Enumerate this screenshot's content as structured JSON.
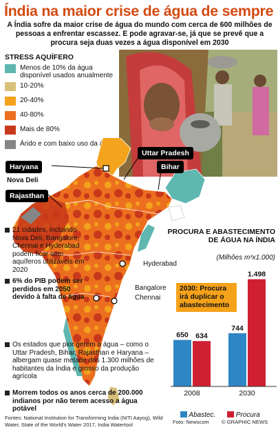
{
  "title": "Índia na maior crise de água de sempre",
  "subtitle": "A Índia sofre da maior crise de água do mundo com cerca de 600 milhões de pessoas a enfrentar escassez. E pode agravar-se, já que se prevê que a procura seja duas vezes a água disponível em 2030",
  "legend": {
    "title": "STRESS AQUÍFERO",
    "items": [
      {
        "label": "Menos de 10% da água disponível usados anualmente",
        "color": "#5fb7b0"
      },
      {
        "label": "10-20%",
        "color": "#d9c07a"
      },
      {
        "label": "20-40%",
        "color": "#f3a31c"
      },
      {
        "label": "40-80%",
        "color": "#ec6f1f"
      },
      {
        "label": "Mais de 80%",
        "color": "#c8381a"
      },
      {
        "label": "Árido e com baixo uso da água",
        "color": "#868686"
      }
    ]
  },
  "map_labels": {
    "uttar_pradesh": "Uttar Pradesh",
    "haryana": "Haryana",
    "nova_deli": "Nova Deli",
    "bihar": "Bihar",
    "rajasthan": "Rajasthan",
    "hyderabad": "Hyderabad",
    "bangalore": "Bangalore",
    "chennai": "Chennai"
  },
  "facts": [
    {
      "text": "21 cidades, incluindo Nova Deli, Bangalore, Chennai e Hyderabad podem ficar sem aquíferos utilizáveis em 2020",
      "bold": false
    },
    {
      "text": "6% do PIB podem ser perdidos em 2050 devido à falta de água",
      "bold": true
    }
  ],
  "facts_wide": [
    {
      "text": "Os estados que pior gerem a água – como o Uttar Pradesh, Bihar, Rajasthan e Haryana – albergam quase metade dos 1.300 milhões de habitantes da Índia e grosso da produção agrícola",
      "bold": false
    },
    {
      "text": "Morrem todos os anos cerca de 200.000 indianos por não terem acesso a água potável",
      "bold": true
    }
  ],
  "chart_data": {
    "type": "bar",
    "title": "PROCURA E ABASTECIMENTO DE ÁGUA NA ÍNDIA",
    "subtitle": "(Milhões m³x1.000)",
    "categories": [
      "2008",
      "2030"
    ],
    "series": [
      {
        "name": "Abastec.",
        "values": [
          650,
          744
        ],
        "labels": [
          "650",
          "744"
        ],
        "color": "#2f86c4"
      },
      {
        "name": "Procura",
        "values": [
          634,
          1498
        ],
        "labels": [
          "634",
          "1.498"
        ],
        "color": "#cf2032"
      }
    ],
    "ylim": [
      0,
      1600
    ],
    "annotation": "2030: Procura irá duplicar o abastecimento"
  },
  "footer": {
    "sources": "Fontes: National Institution for Transforming India (NITI Aayog), Wild Water, State of the World's Water 2017, India Watertool",
    "photo": "Foto: Newscom",
    "copyright": "© GRAPHIC NEWS"
  }
}
